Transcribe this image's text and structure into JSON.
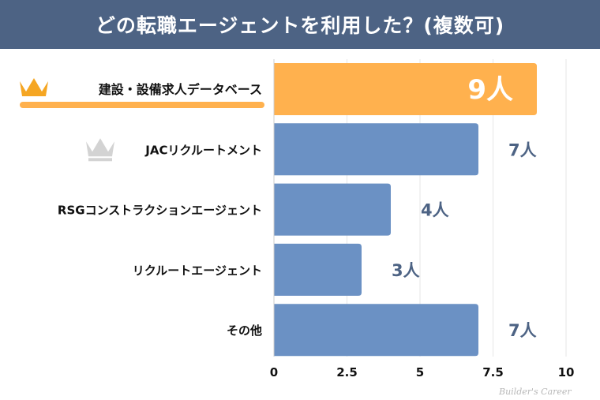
{
  "title": "どの転職エージェントを利用した？(複数可)",
  "watermark": "Builder's Career",
  "colors": {
    "header": "#4d6384",
    "top_bar": "#ffb14e",
    "bar": "#6b91c4",
    "value_label": "#4d6384",
    "crown_gold": "#f5a623",
    "crown_silver": "#d3d3d3"
  },
  "chart_data": {
    "type": "bar",
    "orientation": "horizontal",
    "categories": [
      "建設・設備求人データベース",
      "JACリクルートメント",
      "RSGコンストラクションエージェント",
      "リクルートエージェント",
      "その他"
    ],
    "values": [
      9,
      7,
      4,
      3,
      7
    ],
    "data_labels": [
      "9人",
      "7人",
      "4人",
      "3人",
      "7人"
    ],
    "xlim": [
      0,
      10
    ],
    "xticks": [
      "0",
      "2.5",
      "5",
      "7.5",
      "10"
    ],
    "grid": true,
    "rank_icons": [
      "crown-gold",
      "crown-silver",
      null,
      null,
      null
    ]
  }
}
